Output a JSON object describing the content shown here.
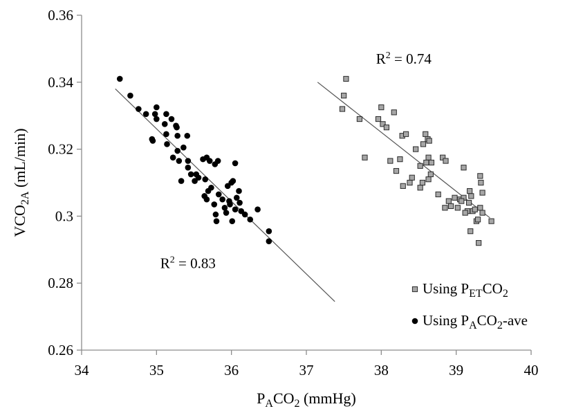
{
  "chart_data": {
    "type": "scatter",
    "title": "",
    "xlabel": {
      "main": "P",
      "sub": "A",
      "rest": "CO",
      "sub2": "2",
      "unit": " (mmHg)"
    },
    "ylabel": {
      "main": "VCO",
      "sub": "2A",
      "unit": " (mL/min)"
    },
    "xlim": [
      34,
      40
    ],
    "ylim": [
      0.26,
      0.36
    ],
    "xticks": [
      "34",
      "35",
      "36",
      "37",
      "38",
      "39",
      "40"
    ],
    "yticks": [
      "0.26",
      "0.28",
      "0.3",
      "0.32",
      "0.34",
      "0.36"
    ],
    "grid": false,
    "legend_position": "bottom-right",
    "series": [
      {
        "name": "Using PETCO2",
        "legend": {
          "pre": "Using P",
          "sub": "ET",
          "post": "CO",
          "sub2": "2",
          "tail": ""
        },
        "marker": "square",
        "color": "#a6a6a6",
        "edge": "#2b2b2b",
        "trendline": {
          "x": [
            37.15,
            39.45
          ],
          "y": [
            0.34,
            0.2995
          ]
        },
        "r2_label": {
          "text": "R",
          "sup": "2",
          "rest": " = 0.74",
          "x": 38.3,
          "y": 0.3455
        },
        "points": [
          [
            37.53,
            0.341
          ],
          [
            37.5,
            0.336
          ],
          [
            37.48,
            0.332
          ],
          [
            37.71,
            0.329
          ],
          [
            37.78,
            0.3175
          ],
          [
            38.0,
            0.3325
          ],
          [
            37.96,
            0.329
          ],
          [
            38.02,
            0.3275
          ],
          [
            38.07,
            0.3265
          ],
          [
            38.17,
            0.331
          ],
          [
            38.28,
            0.324
          ],
          [
            38.33,
            0.3245
          ],
          [
            38.25,
            0.317
          ],
          [
            38.12,
            0.3165
          ],
          [
            38.2,
            0.3135
          ],
          [
            38.38,
            0.31
          ],
          [
            38.29,
            0.309
          ],
          [
            38.41,
            0.3115
          ],
          [
            38.46,
            0.32
          ],
          [
            38.56,
            0.3215
          ],
          [
            38.52,
            0.315
          ],
          [
            38.55,
            0.31
          ],
          [
            38.52,
            0.3085
          ],
          [
            38.59,
            0.3245
          ],
          [
            38.62,
            0.323
          ],
          [
            38.64,
            0.3225
          ],
          [
            38.63,
            0.3175
          ],
          [
            38.6,
            0.316
          ],
          [
            38.66,
            0.3125
          ],
          [
            38.63,
            0.311
          ],
          [
            38.67,
            0.316
          ],
          [
            38.76,
            0.3065
          ],
          [
            38.82,
            0.3175
          ],
          [
            38.86,
            0.3165
          ],
          [
            38.85,
            0.3025
          ],
          [
            38.9,
            0.3045
          ],
          [
            38.93,
            0.303
          ],
          [
            38.98,
            0.3055
          ],
          [
            39.02,
            0.3025
          ],
          [
            39.05,
            0.305
          ],
          [
            39.1,
            0.3055
          ],
          [
            39.07,
            0.3045
          ],
          [
            39.1,
            0.3145
          ],
          [
            39.15,
            0.3015
          ],
          [
            39.12,
            0.301
          ],
          [
            39.18,
            0.3075
          ],
          [
            39.2,
            0.306
          ],
          [
            39.17,
            0.304
          ],
          [
            39.22,
            0.3015
          ],
          [
            39.19,
            0.2955
          ],
          [
            39.25,
            0.302
          ],
          [
            39.27,
            0.2985
          ],
          [
            39.29,
            0.299
          ],
          [
            39.3,
            0.292
          ],
          [
            39.32,
            0.312
          ],
          [
            39.33,
            0.31
          ],
          [
            39.35,
            0.307
          ],
          [
            39.32,
            0.3025
          ],
          [
            39.35,
            0.301
          ],
          [
            39.47,
            0.2985
          ]
        ]
      },
      {
        "name": "Using PACO2-ave",
        "legend": {
          "pre": "Using P",
          "sub": "A",
          "post": "CO",
          "sub2": "2",
          "tail": "-ave"
        },
        "marker": "circle",
        "color": "#000000",
        "edge": "#000000",
        "trendline": {
          "x": [
            34.45,
            37.38
          ],
          "y": [
            0.338,
            0.2745
          ]
        },
        "r2_label": {
          "text": "R",
          "sup": "2",
          "rest": " = 0.83",
          "x": 35.42,
          "y": 0.2845
        },
        "points": [
          [
            34.51,
            0.341
          ],
          [
            34.65,
            0.336
          ],
          [
            34.76,
            0.332
          ],
          [
            34.86,
            0.3305
          ],
          [
            35.0,
            0.3325
          ],
          [
            34.98,
            0.3305
          ],
          [
            35.0,
            0.329
          ],
          [
            34.94,
            0.323
          ],
          [
            34.95,
            0.3225
          ],
          [
            35.13,
            0.3305
          ],
          [
            35.11,
            0.3275
          ],
          [
            35.13,
            0.3245
          ],
          [
            35.14,
            0.3215
          ],
          [
            35.2,
            0.329
          ],
          [
            35.26,
            0.327
          ],
          [
            35.27,
            0.3265
          ],
          [
            35.28,
            0.324
          ],
          [
            35.22,
            0.3175
          ],
          [
            35.28,
            0.3195
          ],
          [
            35.36,
            0.3205
          ],
          [
            35.3,
            0.3165
          ],
          [
            35.33,
            0.3105
          ],
          [
            35.41,
            0.324
          ],
          [
            35.42,
            0.3165
          ],
          [
            35.42,
            0.3145
          ],
          [
            35.46,
            0.3125
          ],
          [
            35.51,
            0.3105
          ],
          [
            35.53,
            0.3125
          ],
          [
            35.56,
            0.3115
          ],
          [
            35.62,
            0.317
          ],
          [
            35.67,
            0.3175
          ],
          [
            35.71,
            0.3165
          ],
          [
            35.78,
            0.3155
          ],
          [
            35.82,
            0.3165
          ],
          [
            35.65,
            0.311
          ],
          [
            35.69,
            0.3075
          ],
          [
            35.64,
            0.306
          ],
          [
            35.67,
            0.305
          ],
          [
            35.73,
            0.3085
          ],
          [
            35.77,
            0.3035
          ],
          [
            35.79,
            0.3005
          ],
          [
            35.8,
            0.2985
          ],
          [
            35.83,
            0.3065
          ],
          [
            35.88,
            0.305
          ],
          [
            35.91,
            0.3025
          ],
          [
            35.93,
            0.301
          ],
          [
            35.97,
            0.3045
          ],
          [
            35.95,
            0.309
          ],
          [
            36.0,
            0.31
          ],
          [
            36.02,
            0.3105
          ],
          [
            35.98,
            0.3035
          ],
          [
            36.01,
            0.2985
          ],
          [
            36.05,
            0.302
          ],
          [
            36.07,
            0.3055
          ],
          [
            36.1,
            0.3075
          ],
          [
            36.11,
            0.304
          ],
          [
            36.13,
            0.3015
          ],
          [
            36.18,
            0.3005
          ],
          [
            36.05,
            0.3158
          ],
          [
            36.25,
            0.299
          ],
          [
            36.35,
            0.302
          ],
          [
            36.5,
            0.2955
          ],
          [
            36.5,
            0.2925
          ]
        ]
      }
    ]
  }
}
